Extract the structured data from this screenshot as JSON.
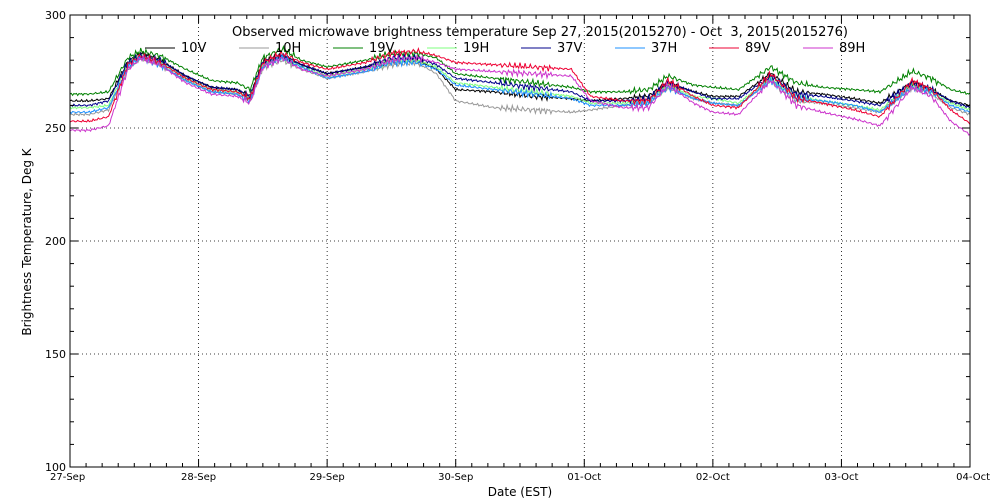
{
  "chart_data": {
    "type": "line",
    "title": "Observed microwave brightness temperature Sep 27, 2015(2015270) - Oct  3, 2015(2015276)",
    "xlabel": "Date (EST)",
    "ylabel": "Brightness Temperature, Deg K",
    "ylim": [
      100,
      300
    ],
    "xlim": [
      0,
      7
    ],
    "grid": true,
    "legend_position": "top",
    "x_ticks": [
      {
        "value": 0,
        "label": "27-Sep"
      },
      {
        "value": 1,
        "label": "28-Sep"
      },
      {
        "value": 2,
        "label": "29-Sep"
      },
      {
        "value": 3,
        "label": "30-Sep"
      },
      {
        "value": 4,
        "label": "01-Oct"
      },
      {
        "value": 5,
        "label": "02-Oct"
      },
      {
        "value": 6,
        "label": "03-Oct"
      },
      {
        "value": 7,
        "label": "04-Oct"
      }
    ],
    "y_ticks": [
      100,
      150,
      200,
      250,
      300
    ],
    "x": [
      0.0,
      0.15,
      0.3,
      0.45,
      0.55,
      0.7,
      0.9,
      1.1,
      1.3,
      1.4,
      1.5,
      1.65,
      1.8,
      2.0,
      2.3,
      2.5,
      2.7,
      2.85,
      3.0,
      3.3,
      3.6,
      3.9,
      4.05,
      4.3,
      4.5,
      4.65,
      4.85,
      5.0,
      5.2,
      5.45,
      5.65,
      5.85,
      6.1,
      6.3,
      6.55,
      6.7,
      6.85,
      7.0
    ],
    "series": [
      {
        "name": "10V",
        "color": "#000000",
        "values": [
          262,
          262,
          263,
          279,
          283,
          280,
          273,
          268,
          267,
          264,
          279,
          282,
          278,
          274,
          277,
          280,
          280,
          276,
          267,
          266,
          264,
          263,
          262,
          263,
          264,
          270,
          266,
          264,
          264,
          274,
          266,
          265,
          263,
          261,
          270,
          267,
          262,
          260
        ]
      },
      {
        "name": "10H",
        "color": "#999999",
        "values": [
          256,
          256,
          258,
          276,
          281,
          278,
          271,
          266,
          265,
          262,
          277,
          280,
          276,
          272,
          275,
          278,
          279,
          274,
          262,
          259,
          258,
          257,
          258,
          260,
          261,
          268,
          263,
          261,
          260,
          271,
          262,
          261,
          259,
          257,
          268,
          265,
          259,
          256
        ]
      },
      {
        "name": "19V",
        "color": "#008000",
        "values": [
          265,
          265,
          266,
          281,
          284,
          282,
          276,
          271,
          270,
          267,
          281,
          285,
          280,
          277,
          280,
          283,
          283,
          281,
          274,
          272,
          270,
          268,
          266,
          266,
          267,
          273,
          269,
          268,
          267,
          277,
          270,
          268,
          267,
          266,
          275,
          272,
          267,
          265
        ]
      },
      {
        "name": "19H",
        "color": "#7fff7f",
        "values": [
          259,
          259,
          260,
          278,
          282,
          279,
          272,
          267,
          266,
          263,
          278,
          282,
          277,
          273,
          276,
          280,
          280,
          277,
          270,
          268,
          266,
          264,
          261,
          261,
          262,
          269,
          264,
          263,
          261,
          272,
          264,
          262,
          260,
          258,
          269,
          266,
          261,
          258
        ]
      },
      {
        "name": "37V",
        "color": "#00008b",
        "values": [
          260,
          260,
          262,
          279,
          282,
          280,
          273,
          268,
          267,
          264,
          279,
          282,
          278,
          274,
          277,
          281,
          281,
          278,
          272,
          270,
          268,
          266,
          262,
          262,
          263,
          270,
          266,
          263,
          263,
          273,
          265,
          264,
          262,
          260,
          270,
          267,
          262,
          259
        ]
      },
      {
        "name": "37H",
        "color": "#1e90ff",
        "values": [
          257,
          257,
          259,
          277,
          281,
          278,
          271,
          266,
          265,
          262,
          277,
          281,
          277,
          272,
          275,
          279,
          279,
          276,
          269,
          267,
          265,
          263,
          260,
          260,
          261,
          268,
          263,
          261,
          260,
          271,
          263,
          262,
          260,
          257,
          268,
          266,
          260,
          257
        ]
      },
      {
        "name": "89V",
        "color": "#ee0033",
        "values": [
          253,
          253,
          255,
          278,
          282,
          279,
          272,
          267,
          266,
          263,
          279,
          283,
          279,
          276,
          279,
          283,
          284,
          282,
          279,
          278,
          277,
          276,
          264,
          262,
          262,
          271,
          264,
          260,
          259,
          274,
          263,
          261,
          258,
          255,
          271,
          267,
          258,
          252
        ]
      },
      {
        "name": "89H",
        "color": "#cc33cc",
        "values": [
          249,
          249,
          251,
          276,
          281,
          278,
          270,
          265,
          264,
          261,
          277,
          281,
          276,
          273,
          276,
          280,
          281,
          279,
          276,
          275,
          274,
          273,
          262,
          259,
          259,
          269,
          261,
          257,
          256,
          271,
          260,
          257,
          254,
          251,
          268,
          264,
          253,
          247
        ]
      }
    ]
  }
}
